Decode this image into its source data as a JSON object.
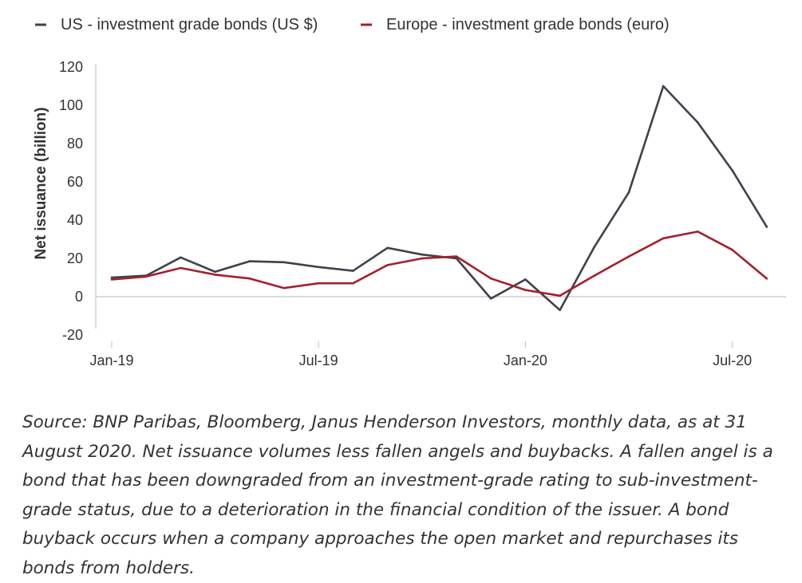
{
  "chart_data": {
    "type": "line",
    "title": "",
    "xlabel": "",
    "ylabel": "Net issuance (billion)",
    "ylim": [
      -20,
      120
    ],
    "yticks": [
      -20,
      0,
      20,
      40,
      60,
      80,
      100,
      120
    ],
    "x_tick_labels": [
      {
        "index": 0,
        "label": "Jan-19"
      },
      {
        "index": 6,
        "label": "Jul-19"
      },
      {
        "index": 12,
        "label": "Jan-20"
      },
      {
        "index": 18,
        "label": "Jul-20"
      }
    ],
    "x_count": 20,
    "series": [
      {
        "name": "US - investment grade bonds (US $)",
        "color": "#3d434b",
        "values": [
          10,
          11,
          20.5,
          13,
          18.5,
          18,
          15.5,
          13.5,
          25.5,
          22,
          20,
          -1,
          9,
          -7,
          26,
          54.5,
          110,
          91,
          66,
          36.5
        ]
      },
      {
        "name": "Europe - investment grade bonds (euro)",
        "color": "#a3202e",
        "values": [
          9,
          10.5,
          15,
          11.5,
          9.5,
          4.5,
          7,
          7,
          16.5,
          20,
          21,
          9.5,
          3.5,
          0.5,
          11,
          21,
          30.5,
          34,
          24.5,
          9.5
        ]
      }
    ],
    "grid": false,
    "legend_position": "top-left"
  },
  "source_note": "Source: BNP Paribas, Bloomberg, Janus Henderson Investors, monthly data, as at 31 August 2020. Net issuance volumes less fallen angels and buybacks. A fallen angel is a bond that has been downgraded from an investment-grade rating to sub-investment-grade status, due to a deterioration in the financial condition of the issuer. A bond buyback occurs when a company approaches the open market and repurchases its bonds from holders."
}
